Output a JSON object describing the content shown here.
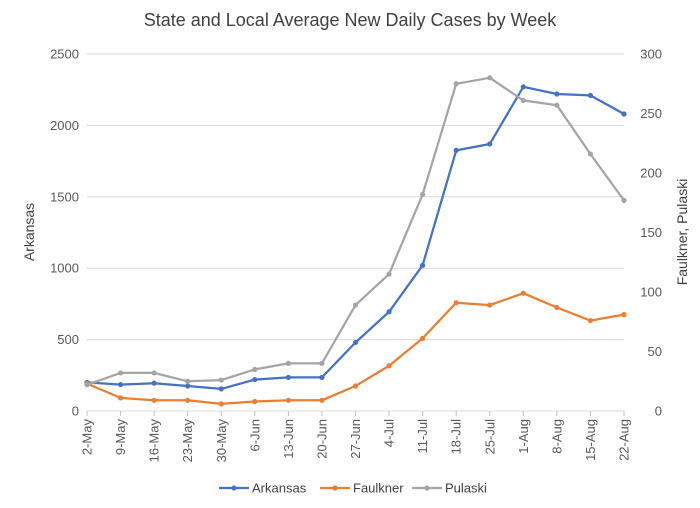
{
  "chart_data": {
    "type": "line",
    "title": "State and Local Average New Daily Cases by Week",
    "categories": [
      "2-May",
      "9-May",
      "16-May",
      "23-May",
      "30-May",
      "6-Jun",
      "13-Jun",
      "20-Jun",
      "27-Jun",
      "4-Jul",
      "11-Jul",
      "18-Jul",
      "25-Jul",
      "1-Aug",
      "8-Aug",
      "15-Aug",
      "22-Aug"
    ],
    "y_left": {
      "label": "Arkansas",
      "ylim": [
        0,
        2500
      ],
      "ticks": [
        "0",
        "500",
        "1000",
        "1500",
        "2000",
        "2500"
      ]
    },
    "y_right": {
      "label": "Faulkner, Pulaski",
      "ylim": [
        0,
        300
      ],
      "ticks": [
        "0",
        "50",
        "100",
        "150",
        "200",
        "250",
        "300"
      ]
    },
    "grid": true,
    "legend_position": "bottom",
    "series": [
      {
        "name": "Arkansas",
        "axis": "left",
        "color": "#4472c4",
        "values": [
          200,
          185,
          195,
          175,
          155,
          220,
          235,
          235,
          480,
          695,
          1020,
          1825,
          1870,
          2270,
          2220,
          2210,
          2080
        ]
      },
      {
        "name": "Faulkner",
        "axis": "right",
        "color": "#ed7d31",
        "values": [
          23,
          11,
          9,
          9,
          6,
          8,
          9,
          9,
          21,
          38,
          61,
          91,
          89,
          99,
          87,
          76,
          81
        ]
      },
      {
        "name": "Pulaski",
        "axis": "right",
        "color": "#a5a5a5",
        "values": [
          22,
          32,
          32,
          25,
          26,
          35,
          40,
          40,
          89,
          115,
          182,
          275,
          280,
          261,
          257,
          216,
          177
        ]
      }
    ]
  }
}
